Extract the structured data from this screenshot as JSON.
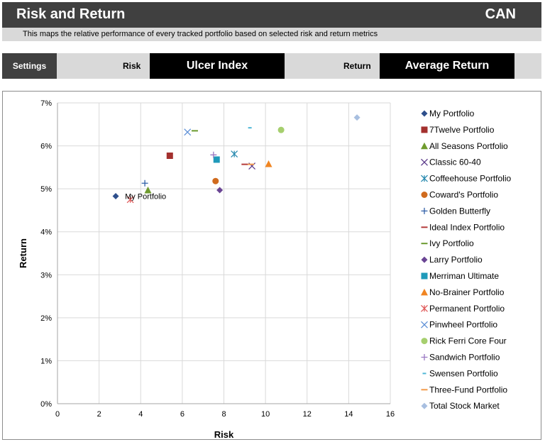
{
  "header": {
    "title": "Risk and Return",
    "country": "CAN",
    "subtitle": "This maps the relative performance of every tracked portfolio based on selected risk and return metrics"
  },
  "settings": {
    "settings_label": "Settings",
    "risk_label": "Risk",
    "risk_value": "Ulcer Index",
    "return_label": "Return",
    "return_value": "Average Return"
  },
  "chart_data": {
    "type": "scatter",
    "title": "",
    "xlabel": "Risk",
    "ylabel": "Return",
    "xlim": [
      0,
      16
    ],
    "ylim": [
      0,
      0.07
    ],
    "x_ticks": [
      0,
      2,
      4,
      6,
      8,
      10,
      12,
      14,
      16
    ],
    "y_ticks": [
      0,
      0.01,
      0.02,
      0.03,
      0.04,
      0.05,
      0.06,
      0.07
    ],
    "x_tick_labels": [
      "0",
      "2",
      "4",
      "6",
      "8",
      "10",
      "12",
      "14",
      "16"
    ],
    "y_tick_labels": [
      "0%",
      "1%",
      "2%",
      "3%",
      "4%",
      "5%",
      "6%",
      "7%"
    ],
    "grid": true,
    "legend_position": "right",
    "annotations": [
      {
        "series": "My Portfolio",
        "text": "My Portfolio"
      }
    ],
    "series": [
      {
        "name": "My Portfolio",
        "x": 2.8,
        "y": 0.0483,
        "marker": "diamond",
        "color": "#2e4f8c"
      },
      {
        "name": "7Twelve Portfolio",
        "x": 5.4,
        "y": 0.0577,
        "marker": "square",
        "color": "#a3302e"
      },
      {
        "name": "All Seasons Portfolio",
        "x": 4.35,
        "y": 0.0497,
        "marker": "triangle",
        "color": "#6f9b2e"
      },
      {
        "name": "Classic 60-40",
        "x": 9.35,
        "y": 0.0553,
        "marker": "x",
        "color": "#5b3a8a"
      },
      {
        "name": "Coffeehouse Portfolio",
        "x": 8.5,
        "y": 0.0581,
        "marker": "asterisk",
        "color": "#2a8bb0"
      },
      {
        "name": "Coward's Portfolio",
        "x": 7.6,
        "y": 0.0518,
        "marker": "circle",
        "color": "#d06b1e"
      },
      {
        "name": "Golden Butterfly",
        "x": 4.2,
        "y": 0.0513,
        "marker": "plus",
        "color": "#2f5fa8"
      },
      {
        "name": "Ideal Index Portfolio",
        "x": 9.0,
        "y": 0.0557,
        "marker": "dash",
        "color": "#b43a3a"
      },
      {
        "name": "Ivy Portfolio",
        "x": 6.6,
        "y": 0.0635,
        "marker": "dash",
        "color": "#6a9a2e"
      },
      {
        "name": "Larry Portfolio",
        "x": 7.8,
        "y": 0.0497,
        "marker": "diamond",
        "color": "#6a4594"
      },
      {
        "name": "Merriman Ultimate",
        "x": 7.65,
        "y": 0.0568,
        "marker": "square",
        "color": "#1f9aba"
      },
      {
        "name": "No-Brainer Portfolio",
        "x": 10.15,
        "y": 0.0558,
        "marker": "triangle",
        "color": "#f08522"
      },
      {
        "name": "Permanent Portfolio",
        "x": 3.5,
        "y": 0.0475,
        "marker": "asterisk",
        "color": "#e05c5c"
      },
      {
        "name": "Pinwheel Portfolio",
        "x": 6.25,
        "y": 0.0632,
        "marker": "x",
        "color": "#5d8fd6"
      },
      {
        "name": "Rick Ferri Core Four",
        "x": 10.75,
        "y": 0.0637,
        "marker": "circle",
        "color": "#a6cf6e"
      },
      {
        "name": "Sandwich Portfolio",
        "x": 7.5,
        "y": 0.0579,
        "marker": "plus",
        "color": "#9a78c2"
      },
      {
        "name": "Swensen Portfolio",
        "x": 9.25,
        "y": 0.0642,
        "marker": "dash-short",
        "color": "#4fb7d6"
      },
      {
        "name": "Three-Fund Portfolio",
        "x": 9.3,
        "y": 0.0557,
        "marker": "dash",
        "color": "#f39a4a"
      },
      {
        "name": "Total Stock Market",
        "x": 14.4,
        "y": 0.0666,
        "marker": "diamond",
        "color": "#a8bfe0"
      }
    ]
  }
}
